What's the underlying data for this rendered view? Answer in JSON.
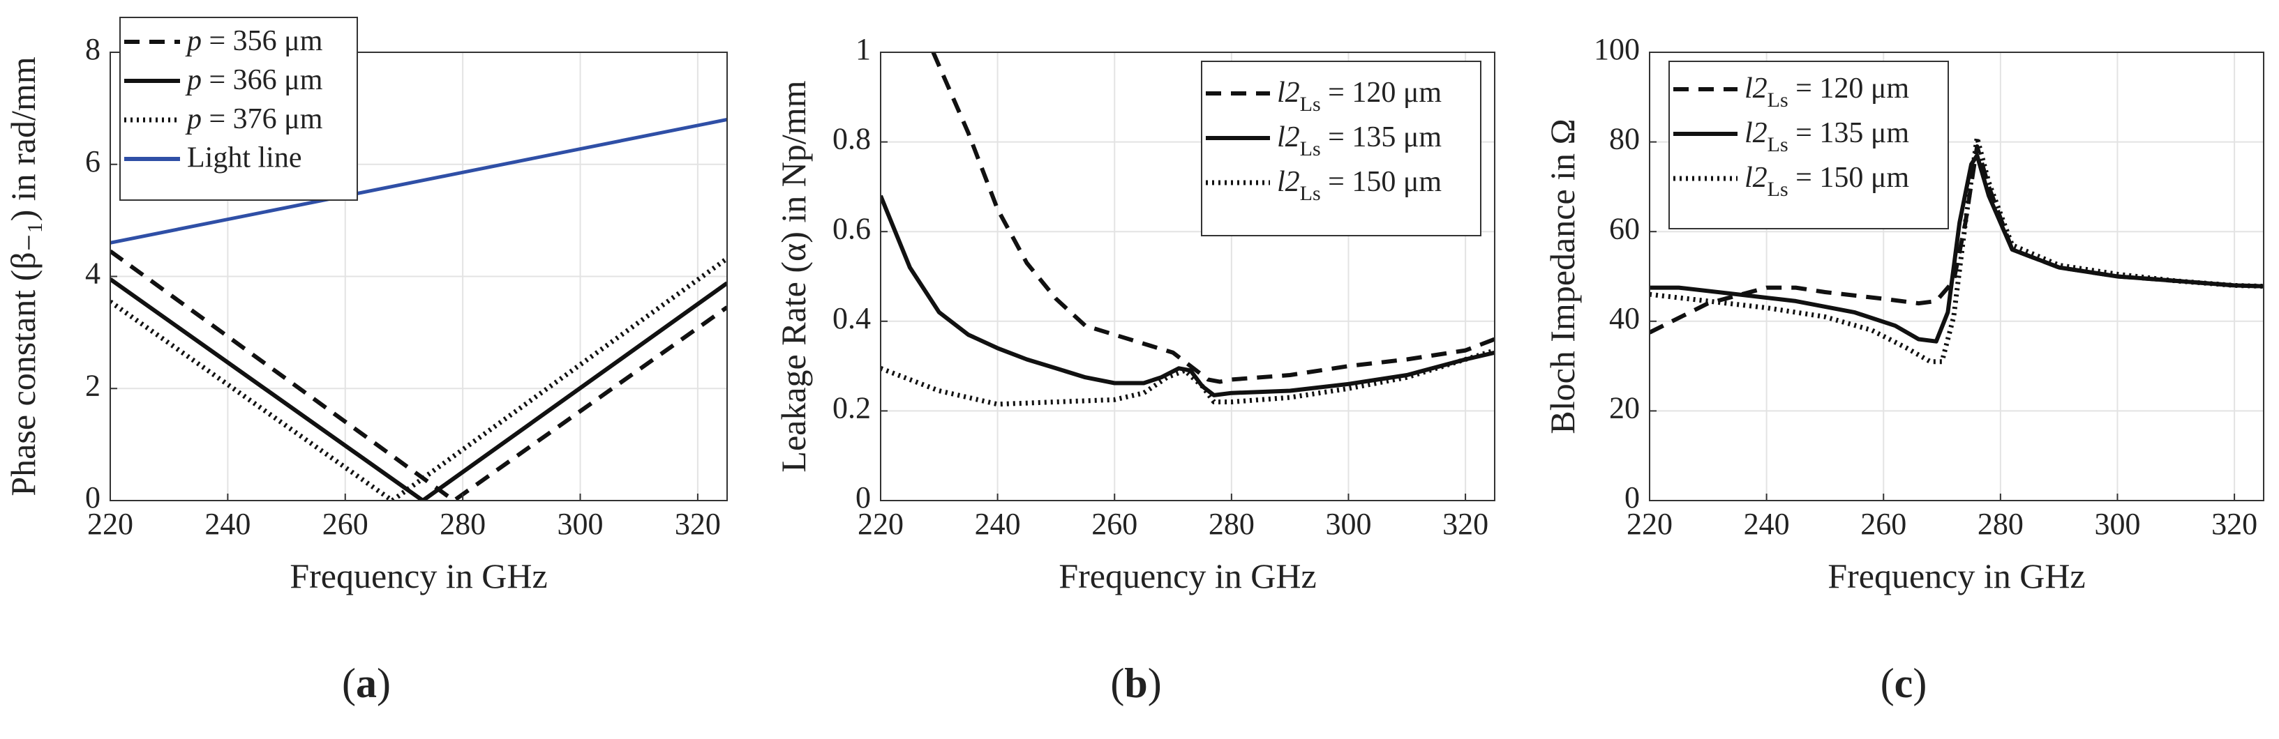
{
  "chart_data": [
    {
      "type": "line",
      "panel_label": "a",
      "xlabel": "Frequency in GHz",
      "ylabel": "Phase constant (β₋₁) in rad/mm",
      "xlim": [
        220,
        325
      ],
      "ylim": [
        0,
        8
      ],
      "xticks": [
        220,
        240,
        260,
        280,
        300,
        320
      ],
      "yticks": [
        0,
        2,
        4,
        6,
        8
      ],
      "grid": true,
      "legend_position": "top-left",
      "series": [
        {
          "name": "p = 356 μm",
          "style": "dashed",
          "color": "#111111",
          "x": [
            220,
            278.5,
            325
          ],
          "y": [
            4.45,
            0,
            3.45
          ]
        },
        {
          "name": "p = 366 μm",
          "style": "solid",
          "color": "#111111",
          "x": [
            220,
            273.2,
            325
          ],
          "y": [
            3.95,
            0,
            3.88
          ]
        },
        {
          "name": "p = 376 μm",
          "style": "dotted",
          "color": "#111111",
          "x": [
            220,
            268,
            325
          ],
          "y": [
            3.55,
            0,
            4.32
          ]
        },
        {
          "name": "Light line",
          "style": "solid",
          "color": "#2f4fa6",
          "x": [
            220,
            325
          ],
          "y": [
            4.6,
            6.8
          ]
        }
      ]
    },
    {
      "type": "line",
      "panel_label": "b",
      "xlabel": "Frequency in GHz",
      "ylabel": "Leakage Rate (α) in Np/mm",
      "xlim": [
        220,
        325
      ],
      "ylim": [
        0,
        1
      ],
      "xticks": [
        220,
        240,
        260,
        280,
        300,
        320
      ],
      "yticks": [
        0,
        0.2,
        0.4,
        0.6,
        0.8,
        1
      ],
      "ytick_labels": [
        "0",
        "0.2",
        "0.4",
        "0.6",
        "0.8",
        "1"
      ],
      "grid": true,
      "legend_position": "top-right",
      "series": [
        {
          "name": "l2Ls = 120 μm",
          "style": "dashed",
          "color": "#111111",
          "x": [
            229,
            235,
            240,
            245,
            250,
            255,
            260,
            265,
            270,
            273,
            276,
            278,
            280,
            290,
            300,
            310,
            320,
            325
          ],
          "y": [
            1.0,
            0.82,
            0.65,
            0.53,
            0.45,
            0.39,
            0.37,
            0.35,
            0.33,
            0.3,
            0.27,
            0.265,
            0.27,
            0.28,
            0.3,
            0.315,
            0.335,
            0.36
          ]
        },
        {
          "name": "l2Ls = 135 μm",
          "style": "solid",
          "color": "#111111",
          "x": [
            220,
            225,
            230,
            235,
            240,
            245,
            250,
            255,
            260,
            265,
            268,
            271,
            273,
            275,
            277,
            280,
            290,
            300,
            310,
            320,
            325
          ],
          "y": [
            0.68,
            0.52,
            0.42,
            0.37,
            0.34,
            0.315,
            0.295,
            0.275,
            0.262,
            0.262,
            0.275,
            0.295,
            0.29,
            0.255,
            0.235,
            0.24,
            0.245,
            0.26,
            0.28,
            0.315,
            0.33
          ]
        },
        {
          "name": "l2Ls = 150 μm",
          "style": "dotted",
          "color": "#111111",
          "x": [
            220,
            230,
            240,
            250,
            260,
            265,
            269,
            272,
            275,
            277,
            280,
            290,
            300,
            310,
            320,
            325
          ],
          "y": [
            0.295,
            0.245,
            0.215,
            0.22,
            0.225,
            0.24,
            0.275,
            0.29,
            0.255,
            0.22,
            0.22,
            0.23,
            0.25,
            0.275,
            0.315,
            0.335
          ]
        }
      ]
    },
    {
      "type": "line",
      "panel_label": "c",
      "xlabel": "Frequency in GHz",
      "ylabel": "Bloch Impedance in Ω",
      "xlim": [
        220,
        325
      ],
      "ylim": [
        0,
        100
      ],
      "xticks": [
        220,
        240,
        260,
        280,
        300,
        320
      ],
      "yticks": [
        0,
        20,
        40,
        60,
        80,
        100
      ],
      "grid": true,
      "legend_position": "top-left",
      "series": [
        {
          "name": "l2Ls = 120 μm",
          "style": "dashed",
          "color": "#111111",
          "x": [
            220,
            230,
            240,
            245,
            250,
            260,
            266,
            269,
            272,
            274,
            276,
            278,
            282,
            290,
            300,
            310,
            320,
            325
          ],
          "y": [
            37.5,
            44,
            47.5,
            47.5,
            46.5,
            45,
            44,
            44.5,
            49,
            62,
            79,
            70,
            56,
            52,
            50,
            49,
            48,
            47.8
          ]
        },
        {
          "name": "l2Ls = 135 μm",
          "style": "solid",
          "color": "#111111",
          "x": [
            220,
            225,
            235,
            245,
            255,
            262,
            266,
            269,
            271,
            273,
            275,
            276,
            278,
            282,
            290,
            300,
            310,
            320,
            325
          ],
          "y": [
            47.5,
            47.5,
            46,
            44.5,
            42,
            39,
            36,
            35.5,
            42,
            62,
            75,
            77,
            68,
            56,
            52,
            50,
            49,
            48,
            47.8
          ]
        },
        {
          "name": "l2Ls = 150 μm",
          "style": "dotted",
          "color": "#111111",
          "x": [
            220,
            230,
            240,
            250,
            258,
            264,
            268,
            270,
            272,
            274,
            276,
            278,
            282,
            290,
            300,
            310,
            320,
            325
          ],
          "y": [
            46,
            44.5,
            43,
            41,
            38,
            34,
            31,
            31,
            41,
            62,
            81,
            71,
            57,
            52.5,
            50.5,
            49,
            48,
            47.8
          ]
        }
      ]
    }
  ],
  "panels": [
    {
      "label": "a"
    },
    {
      "label": "b"
    },
    {
      "label": "c"
    }
  ]
}
